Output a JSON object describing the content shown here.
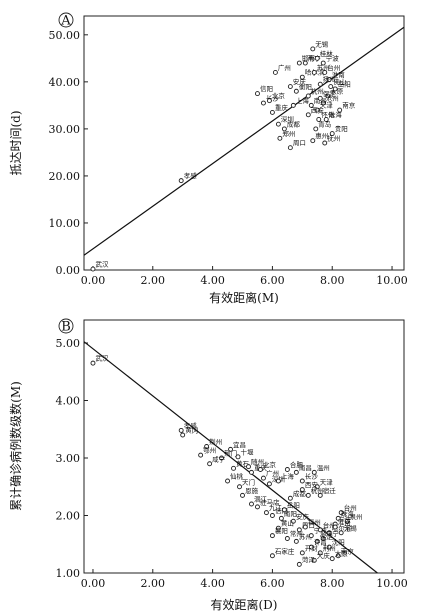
{
  "chart_data": [
    {
      "type": "scatter",
      "panel_label": "A",
      "xlabel": "有效距离(M)",
      "ylabel": "抵达时间(d)",
      "xlim": [
        -0.3,
        10.4
      ],
      "ylim": [
        0,
        54
      ],
      "xticks": [
        "0.00",
        "2.00",
        "4.00",
        "6.00",
        "8.00",
        "10.00"
      ],
      "xtick_values": [
        0,
        2,
        4,
        6,
        8,
        10
      ],
      "yticks": [
        "0.00",
        "10.00",
        "20.00",
        "30.00",
        "40.00",
        "50.00"
      ],
      "ytick_values": [
        0,
        10,
        20,
        30,
        40,
        50
      ],
      "fit_line": {
        "intercept": 4.5,
        "slope": 4.53
      },
      "points": [
        {
          "x": 0.0,
          "y": 0.2,
          "label": "武汉"
        },
        {
          "x": 2.95,
          "y": 19.0,
          "label": "孝感"
        },
        {
          "x": 5.5,
          "y": 37.5,
          "label": "信阳"
        },
        {
          "x": 5.7,
          "y": 35.5,
          "label": "长沙"
        },
        {
          "x": 5.9,
          "y": 36.0,
          "label": "北京"
        },
        {
          "x": 6.1,
          "y": 42.0,
          "label": "广州"
        },
        {
          "x": 6.0,
          "y": 33.5,
          "label": "重庆"
        },
        {
          "x": 6.2,
          "y": 31.0,
          "label": "深圳"
        },
        {
          "x": 6.4,
          "y": 30.0,
          "label": "成都"
        },
        {
          "x": 6.25,
          "y": 28.0,
          "label": "郑州"
        },
        {
          "x": 6.6,
          "y": 26.0,
          "label": "周口"
        },
        {
          "x": 6.6,
          "y": 39.0,
          "label": "安庆"
        },
        {
          "x": 6.7,
          "y": 35.0,
          "label": "上海"
        },
        {
          "x": 6.9,
          "y": 44.0,
          "label": "邯郸"
        },
        {
          "x": 7.1,
          "y": 44.0,
          "label": "南宁"
        },
        {
          "x": 7.0,
          "y": 41.0,
          "label": "哈尔滨"
        },
        {
          "x": 7.2,
          "y": 37.0,
          "label": "杭州"
        },
        {
          "x": 7.3,
          "y": 35.0,
          "label": "南昌"
        },
        {
          "x": 7.35,
          "y": 47.0,
          "label": "无锡"
        },
        {
          "x": 7.5,
          "y": 45.0,
          "label": "桂林"
        },
        {
          "x": 7.7,
          "y": 44.0,
          "label": "宁波"
        },
        {
          "x": 7.75,
          "y": 42.0,
          "label": "台州"
        },
        {
          "x": 7.9,
          "y": 40.5,
          "label": "淮南"
        },
        {
          "x": 7.95,
          "y": 39.0,
          "label": "佛山"
        },
        {
          "x": 7.85,
          "y": 37.0,
          "label": "太原"
        },
        {
          "x": 7.6,
          "y": 36.5,
          "label": "保定"
        },
        {
          "x": 7.7,
          "y": 35.5,
          "label": "沧州"
        },
        {
          "x": 7.5,
          "y": 34.0,
          "label": "天津"
        },
        {
          "x": 7.2,
          "y": 33.0,
          "label": "西安"
        },
        {
          "x": 7.55,
          "y": 32.0,
          "label": "怀化"
        },
        {
          "x": 7.8,
          "y": 32.0,
          "label": "珠海"
        },
        {
          "x": 7.45,
          "y": 30.0,
          "label": "青岛"
        },
        {
          "x": 8.0,
          "y": 29.0,
          "label": "贵阳"
        },
        {
          "x": 7.35,
          "y": 27.5,
          "label": "惠州"
        },
        {
          "x": 7.75,
          "y": 27.0,
          "label": "抚州"
        },
        {
          "x": 7.4,
          "y": 42.0,
          "label": "苏州"
        },
        {
          "x": 7.6,
          "y": 39.5,
          "label": "扬州"
        },
        {
          "x": 8.1,
          "y": 38.5,
          "label": "岳阳"
        },
        {
          "x": 8.25,
          "y": 34.0,
          "label": "南京"
        },
        {
          "x": 6.8,
          "y": 38.0,
          "label": "衡阳"
        }
      ]
    },
    {
      "type": "scatter",
      "panel_label": "B",
      "xlabel": "有效距离(D)",
      "ylabel": "累计确诊病例数级数(M)",
      "xlim": [
        -0.3,
        10.4
      ],
      "ylim": [
        1.0,
        5.4
      ],
      "xticks": [
        "0.00",
        "2.00",
        "4.00",
        "6.00",
        "8.00",
        "10.00"
      ],
      "xtick_values": [
        0,
        2,
        4,
        6,
        8,
        10
      ],
      "yticks": [
        "1.00",
        "2.00",
        "3.00",
        "4.00",
        "5.00"
      ],
      "ytick_values": [
        1,
        2,
        3,
        4,
        5
      ],
      "fit_line": {
        "intercept": 4.9,
        "slope": -0.41
      },
      "points": [
        {
          "x": 0.0,
          "y": 4.65,
          "label": "武汉"
        },
        {
          "x": 2.95,
          "y": 3.48,
          "label": "孝感"
        },
        {
          "x": 3.0,
          "y": 3.4,
          "label": "黄冈"
        },
        {
          "x": 3.8,
          "y": 3.2,
          "label": "荆州"
        },
        {
          "x": 4.6,
          "y": 3.15,
          "label": "宜昌"
        },
        {
          "x": 3.6,
          "y": 3.05,
          "label": "鄂州"
        },
        {
          "x": 4.3,
          "y": 3.0,
          "label": "荆门"
        },
        {
          "x": 4.85,
          "y": 3.02,
          "label": "十堰"
        },
        {
          "x": 3.9,
          "y": 2.9,
          "label": "咸宁"
        },
        {
          "x": 4.7,
          "y": 2.82,
          "label": "黄石"
        },
        {
          "x": 5.2,
          "y": 2.85,
          "label": "随州"
        },
        {
          "x": 5.3,
          "y": 2.75,
          "label": "重庆"
        },
        {
          "x": 5.6,
          "y": 2.8,
          "label": "北京"
        },
        {
          "x": 4.5,
          "y": 2.6,
          "label": "仙桃"
        },
        {
          "x": 4.9,
          "y": 2.5,
          "label": "天门"
        },
        {
          "x": 5.0,
          "y": 2.35,
          "label": "恩施"
        },
        {
          "x": 5.7,
          "y": 2.65,
          "label": "广州"
        },
        {
          "x": 5.9,
          "y": 2.55,
          "label": "深圳"
        },
        {
          "x": 6.2,
          "y": 2.6,
          "label": "上海"
        },
        {
          "x": 6.5,
          "y": 2.8,
          "label": "合肥"
        },
        {
          "x": 6.8,
          "y": 2.75,
          "label": "南昌"
        },
        {
          "x": 7.0,
          "y": 2.6,
          "label": "长沙"
        },
        {
          "x": 7.4,
          "y": 2.75,
          "label": "温州"
        },
        {
          "x": 7.5,
          "y": 2.5,
          "label": "天津"
        },
        {
          "x": 7.2,
          "y": 2.35,
          "label": "杭州"
        },
        {
          "x": 7.0,
          "y": 2.45,
          "label": "西安"
        },
        {
          "x": 7.6,
          "y": 2.35,
          "label": "宿迁"
        },
        {
          "x": 6.6,
          "y": 2.3,
          "label": "成都"
        },
        {
          "x": 5.3,
          "y": 2.2,
          "label": "潜江"
        },
        {
          "x": 5.5,
          "y": 2.15,
          "label": "驻马店"
        },
        {
          "x": 5.8,
          "y": 2.05,
          "label": "九江"
        },
        {
          "x": 6.0,
          "y": 2.0,
          "label": "信阳"
        },
        {
          "x": 6.3,
          "y": 1.95,
          "label": "南阳"
        },
        {
          "x": 6.4,
          "y": 2.1,
          "label": "岳阳"
        },
        {
          "x": 6.7,
          "y": 1.9,
          "label": "安庆"
        },
        {
          "x": 6.2,
          "y": 1.78,
          "label": "黄山"
        },
        {
          "x": 6.9,
          "y": 1.75,
          "label": "周口"
        },
        {
          "x": 7.1,
          "y": 1.8,
          "label": "福州"
        },
        {
          "x": 6.0,
          "y": 1.65,
          "label": "襄阳"
        },
        {
          "x": 6.5,
          "y": 1.6,
          "label": "常州"
        },
        {
          "x": 6.8,
          "y": 1.55,
          "label": "苏州"
        },
        {
          "x": 7.3,
          "y": 1.65,
          "label": "宁波"
        },
        {
          "x": 7.6,
          "y": 1.75,
          "label": "台州"
        },
        {
          "x": 7.9,
          "y": 1.7,
          "label": "哈尔滨"
        },
        {
          "x": 8.1,
          "y": 1.85,
          "label": "宁波"
        },
        {
          "x": 8.3,
          "y": 2.05,
          "label": "台州"
        },
        {
          "x": 8.2,
          "y": 1.95,
          "label": "珠海"
        },
        {
          "x": 8.5,
          "y": 1.9,
          "label": "泉州"
        },
        {
          "x": 8.1,
          "y": 1.8,
          "label": "淮南"
        },
        {
          "x": 8.3,
          "y": 1.7,
          "label": "无锡"
        },
        {
          "x": 7.7,
          "y": 1.6,
          "label": "济宁"
        },
        {
          "x": 7.5,
          "y": 1.55,
          "label": "保定"
        },
        {
          "x": 7.3,
          "y": 1.45,
          "label": "许昌"
        },
        {
          "x": 7.9,
          "y": 1.45,
          "label": "沈阳"
        },
        {
          "x": 7.0,
          "y": 1.35,
          "label": "开封"
        },
        {
          "x": 7.6,
          "y": 1.35,
          "label": "荆州"
        },
        {
          "x": 8.2,
          "y": 1.3,
          "label": "南京"
        },
        {
          "x": 8.0,
          "y": 1.25,
          "label": "太原"
        },
        {
          "x": 7.4,
          "y": 1.22,
          "label": "大庆"
        },
        {
          "x": 6.9,
          "y": 1.15,
          "label": "菏泽"
        },
        {
          "x": 6.0,
          "y": 1.3,
          "label": "石家庄"
        }
      ]
    }
  ]
}
